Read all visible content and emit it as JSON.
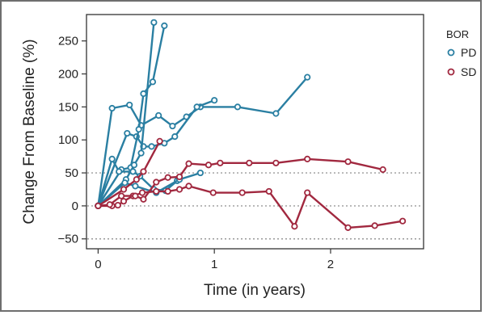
{
  "chart_data": {
    "type": "line",
    "title": "",
    "xlabel": "Time (in years)",
    "ylabel": "Change From Baseline (%)",
    "xlim": [
      -0.1,
      2.8
    ],
    "ylim": [
      -65,
      290
    ],
    "x_ticks": [
      0,
      1,
      2
    ],
    "x_tick_labels": [
      "0",
      "1",
      "2"
    ],
    "y_ticks": [
      -50,
      0,
      50,
      100,
      150,
      200,
      250
    ],
    "y_tick_labels": [
      "−50",
      "0",
      "50",
      "100",
      "150",
      "200",
      "250"
    ],
    "reference_lines_y": [
      -50,
      0,
      50
    ],
    "grid": false,
    "legend": {
      "title": "BOR",
      "placement": "top-right",
      "entries": [
        {
          "label": "PD",
          "color": "#2a7fa2"
        },
        {
          "label": "SD",
          "color": "#a1283f"
        }
      ]
    },
    "colors": {
      "PD": "#2a7fa2",
      "SD": "#a1283f"
    },
    "series": [
      {
        "group": "PD",
        "points": [
          [
            0,
            0
          ],
          [
            0.12,
            148
          ],
          [
            0.27,
            153
          ],
          [
            0.37,
            122
          ],
          [
            0.52,
            137
          ],
          [
            0.64,
            121
          ],
          [
            0.76,
            135
          ],
          [
            0.88,
            150
          ],
          [
            1.2,
            150
          ],
          [
            1.53,
            140
          ],
          [
            1.8,
            195
          ]
        ]
      },
      {
        "group": "PD",
        "points": [
          [
            0,
            0
          ],
          [
            0.25,
            110
          ],
          [
            0.33,
            105
          ],
          [
            0.39,
            90
          ],
          [
            0.46,
            90
          ],
          [
            0.57,
            95
          ],
          [
            0.66,
            105
          ],
          [
            0.85,
            150
          ],
          [
            1.0,
            160
          ]
        ]
      },
      {
        "group": "PD",
        "points": [
          [
            0,
            0
          ],
          [
            0.2,
            55
          ],
          [
            0.28,
            58
          ],
          [
            0.35,
            116
          ],
          [
            0.39,
            170
          ],
          [
            0.47,
            188
          ],
          [
            0.57,
            273
          ]
        ]
      },
      {
        "group": "PD",
        "points": [
          [
            0,
            0
          ],
          [
            0.24,
            40
          ],
          [
            0.31,
            62
          ],
          [
            0.37,
            80
          ],
          [
            0.48,
            278
          ]
        ]
      },
      {
        "group": "PD",
        "points": [
          [
            0,
            0
          ],
          [
            0.12,
            71
          ],
          [
            0.18,
            52
          ],
          [
            0.3,
            52
          ],
          [
            0.36,
            45
          ],
          [
            0.48,
            25
          ],
          [
            0.58,
            23
          ],
          [
            0.68,
            38
          ]
        ]
      },
      {
        "group": "PD",
        "points": [
          [
            0,
            0
          ],
          [
            0.23,
            35
          ],
          [
            0.32,
            30
          ],
          [
            0.5,
            20
          ],
          [
            0.7,
            40
          ],
          [
            0.88,
            50
          ]
        ]
      },
      {
        "group": "SD",
        "points": [
          [
            0,
            0
          ],
          [
            0.12,
            0
          ],
          [
            0.17,
            1
          ],
          [
            0.22,
            7
          ],
          [
            0.3,
            15
          ],
          [
            0.38,
            20
          ],
          [
            0.5,
            22
          ],
          [
            0.6,
            22
          ],
          [
            0.7,
            25
          ],
          [
            0.78,
            30
          ],
          [
            0.99,
            20
          ],
          [
            1.24,
            20
          ],
          [
            1.47,
            22
          ],
          [
            1.69,
            -31
          ],
          [
            1.8,
            20
          ],
          [
            2.15,
            -33
          ],
          [
            2.38,
            -30
          ],
          [
            2.62,
            -23
          ]
        ]
      },
      {
        "group": "SD",
        "points": [
          [
            0,
            0
          ],
          [
            0.1,
            2
          ],
          [
            0.2,
            15
          ],
          [
            0.32,
            15
          ],
          [
            0.39,
            10
          ],
          [
            0.5,
            36
          ],
          [
            0.6,
            43
          ],
          [
            0.7,
            44
          ],
          [
            0.78,
            64
          ],
          [
            0.95,
            62
          ],
          [
            1.05,
            65
          ],
          [
            1.3,
            65
          ],
          [
            1.53,
            65
          ],
          [
            1.8,
            71
          ],
          [
            2.15,
            67
          ],
          [
            2.45,
            55
          ]
        ]
      },
      {
        "group": "SD",
        "points": [
          [
            0,
            0
          ],
          [
            0.22,
            25
          ],
          [
            0.33,
            40
          ],
          [
            0.39,
            52
          ],
          [
            0.53,
            98
          ]
        ]
      }
    ]
  }
}
